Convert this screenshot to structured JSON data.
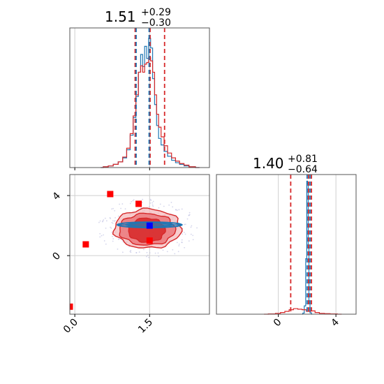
{
  "titles": {
    "x": {
      "value": "1.51",
      "plus": "+0.29",
      "minus": "−0.30"
    },
    "y": {
      "value": "1.40",
      "plus": "+0.81",
      "minus": "−0.64"
    }
  },
  "colors": {
    "blue": "#1f77b4",
    "red": "#d62728",
    "marker_red": "#ff0000",
    "marker_blue": "#0000ff",
    "grid": "#cfcfcf"
  },
  "chart_data": [
    {
      "type": "histogram",
      "panel": "top-left",
      "xlim": [
        -0.1,
        2.7
      ],
      "xticks": [
        0.0,
        1.5
      ],
      "grid": true,
      "series": [
        {
          "color": "blue",
          "x": [
            0.52,
            0.62,
            0.72,
            0.82,
            0.92,
            1.0,
            1.08,
            1.14,
            1.2,
            1.25,
            1.3,
            1.34,
            1.38,
            1.42,
            1.46,
            1.5,
            1.54,
            1.58,
            1.62,
            1.66,
            1.7,
            1.76,
            1.82,
            1.9,
            1.98,
            2.06,
            2.14,
            2.24,
            2.34,
            2.5
          ],
          "values": [
            0,
            1,
            2,
            4,
            7,
            12,
            22,
            40,
            62,
            88,
            118,
            140,
            125,
            150,
            135,
            160,
            148,
            110,
            78,
            52,
            36,
            28,
            20,
            14,
            9,
            6,
            4,
            2,
            1,
            0
          ]
        },
        {
          "color": "red",
          "x": [
            0.52,
            0.62,
            0.72,
            0.82,
            0.92,
            1.0,
            1.08,
            1.14,
            1.2,
            1.25,
            1.3,
            1.34,
            1.38,
            1.42,
            1.46,
            1.5,
            1.54,
            1.58,
            1.62,
            1.66,
            1.7,
            1.76,
            1.82,
            1.9,
            1.98,
            2.06,
            2.14,
            2.24,
            2.34,
            2.5
          ],
          "values": [
            0,
            1,
            2,
            4,
            7,
            13,
            24,
            42,
            64,
            90,
            118,
            126,
            118,
            128,
            130,
            136,
            132,
            118,
            90,
            66,
            50,
            38,
            27,
            18,
            12,
            8,
            5,
            3,
            1,
            0
          ]
        }
      ],
      "quantile_lines": {
        "red": [
          1.21,
          1.51,
          1.8
        ],
        "blue": [
          1.23,
          1.49
        ]
      }
    },
    {
      "type": "contour",
      "panel": "bottom-left",
      "xlim": [
        -0.1,
        2.7
      ],
      "ylim": [
        -3.9,
        5.4
      ],
      "xticks": [
        0.0,
        1.5
      ],
      "yticks": [
        0,
        4
      ],
      "grid": true,
      "blue_contour": {
        "center": [
          1.5,
          2.05
        ],
        "half_width": 0.65,
        "half_height": 0.18
      },
      "red_contours": [
        {
          "center": [
            1.46,
            1.8
          ],
          "rx": 0.67,
          "ry": 1.3
        },
        {
          "center": [
            1.45,
            1.75
          ],
          "rx": 0.56,
          "ry": 1.05
        },
        {
          "center": [
            1.44,
            1.7
          ],
          "rx": 0.37,
          "ry": 0.8
        }
      ],
      "markers": [
        {
          "x": 0.71,
          "y": 4.1,
          "color": "marker_red"
        },
        {
          "x": 1.28,
          "y": 3.45,
          "color": "marker_red"
        },
        {
          "x": 0.22,
          "y": 0.75,
          "color": "marker_red"
        },
        {
          "x": 1.5,
          "y": 1.0,
          "color": "marker_red"
        },
        {
          "x": 1.5,
          "y": 2.0,
          "color": "marker_blue"
        },
        {
          "x": -0.1,
          "y": -3.4,
          "color": "marker_red"
        }
      ]
    },
    {
      "type": "histogram",
      "panel": "bottom-right",
      "xlim": [
        -4.3,
        5.4
      ],
      "xticks": [
        0,
        4
      ],
      "grid": true,
      "series": [
        {
          "color": "blue",
          "x": [
            1.65,
            1.75,
            1.85,
            1.95,
            2.0,
            2.05,
            2.1,
            2.15,
            2.25,
            2.35
          ],
          "values": [
            0,
            4,
            30,
            200,
            480,
            470,
            240,
            40,
            5,
            0
          ]
        },
        {
          "color": "red",
          "x": [
            -1.0,
            -0.4,
            0.0,
            0.3,
            0.6,
            0.9,
            1.2,
            1.5,
            1.8,
            2.1,
            2.4,
            2.7,
            3.0,
            3.4,
            3.8,
            4.4
          ],
          "values": [
            0,
            1,
            3,
            6,
            10,
            16,
            20,
            18,
            16,
            10,
            12,
            6,
            3,
            2,
            1,
            0
          ]
        }
      ],
      "quantile_lines": {
        "red": [
          0.86,
          2.1,
          2.3
        ],
        "blue": [
          2.0,
          2.2
        ]
      }
    }
  ]
}
